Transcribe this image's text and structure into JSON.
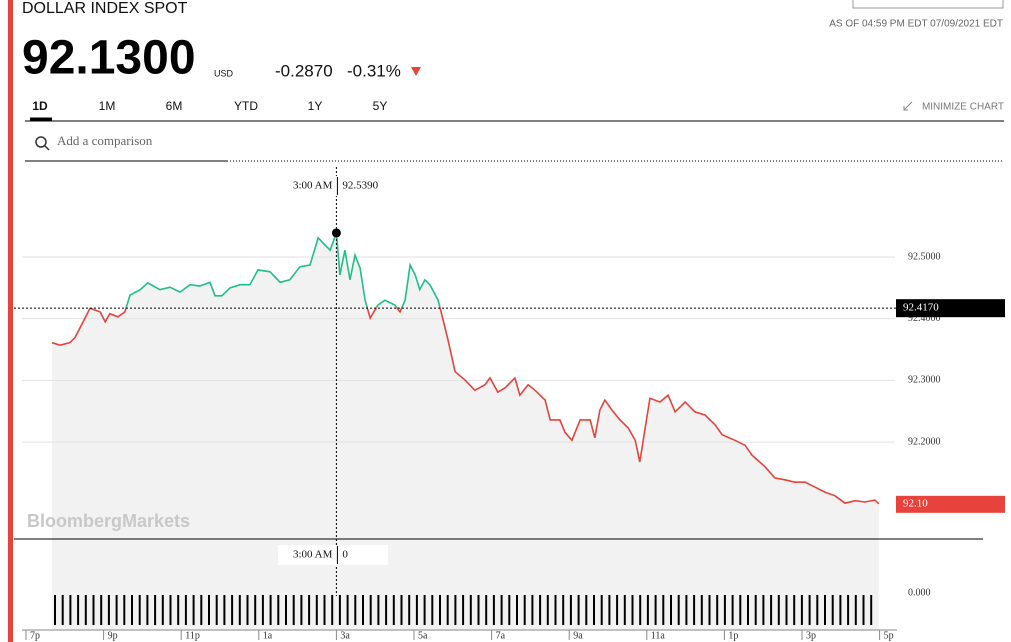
{
  "header": {
    "title": "DOLLAR INDEX SPOT",
    "as_of": "AS OF 04:59 PM EDT 07/09/2021 EDT",
    "price": "92.1300",
    "currency": "USD",
    "change": "-0.2870",
    "change_pct": "-0.31%"
  },
  "tabs": [
    "1D",
    "1M",
    "6M",
    "YTD",
    "1Y",
    "5Y"
  ],
  "minimize": "MINIMIZE CHART",
  "search_placeholder": "Add a comparison",
  "chart_data": {
    "type": "line",
    "watermark": "BloombergMarkets",
    "x": [
      0.67,
      0.88,
      1.13,
      1.26,
      1.52,
      1.65,
      1.91,
      2.04,
      2.16,
      2.37,
      2.55,
      2.68,
      2.94,
      3.14,
      3.45,
      3.71,
      3.97,
      4.23,
      4.48,
      4.74,
      4.87,
      5.05,
      5.26,
      5.52,
      5.77,
      5.98,
      6.29,
      6.55,
      6.8,
      7.06,
      7.32,
      7.53,
      7.71,
      7.84,
      8.0,
      8.09,
      8.22,
      8.35,
      8.48,
      8.61,
      8.74,
      8.87,
      9.07,
      9.25,
      9.51,
      9.64,
      9.77,
      9.9,
      10.03,
      10.15,
      10.28,
      10.41,
      10.62,
      10.72,
      10.88,
      11.06,
      11.31,
      11.57,
      11.83,
      11.96,
      12.16,
      12.35,
      12.6,
      12.73,
      12.94,
      13.12,
      13.38,
      13.51,
      13.76,
      13.89,
      14.07,
      14.28,
      14.54,
      14.66,
      14.79,
      14.92,
      15.1,
      15.31,
      15.52,
      15.7,
      15.82,
      15.95,
      16.08,
      16.34,
      16.55,
      16.73,
      16.99,
      17.24,
      17.5,
      17.76,
      17.94,
      18.27,
      18.53,
      18.71,
      19.05,
      19.3,
      19.56,
      19.82,
      20.08,
      20.34,
      20.59,
      20.85,
      21.11,
      21.37,
      21.62,
      21.88,
      21.98
    ],
    "series": [
      {
        "color_up": "#1fbf86",
        "color_down": "#e8423c",
        "values": [
          92.361,
          92.357,
          92.361,
          92.369,
          92.401,
          92.417,
          92.411,
          92.395,
          92.408,
          92.403,
          92.411,
          92.438,
          92.447,
          92.458,
          92.447,
          92.451,
          92.443,
          92.455,
          92.453,
          92.459,
          92.437,
          92.437,
          92.45,
          92.455,
          92.455,
          92.479,
          92.476,
          92.459,
          92.463,
          92.484,
          92.487,
          92.531,
          92.519,
          92.511,
          92.539,
          92.471,
          92.511,
          92.463,
          92.503,
          92.482,
          92.43,
          92.401,
          92.422,
          92.43,
          92.422,
          92.411,
          92.43,
          92.487,
          92.471,
          92.447,
          92.463,
          92.455,
          92.43,
          92.406,
          92.365,
          92.314,
          92.301,
          92.284,
          92.293,
          92.304,
          92.281,
          92.288,
          92.304,
          92.276,
          92.293,
          92.284,
          92.268,
          92.236,
          92.236,
          92.216,
          92.203,
          92.236,
          92.236,
          92.207,
          92.252,
          92.268,
          92.252,
          92.236,
          92.223,
          92.203,
          92.168,
          92.22,
          92.271,
          92.265,
          92.276,
          92.249,
          92.265,
          92.249,
          92.244,
          92.228,
          92.212,
          92.203,
          92.195,
          92.179,
          92.16,
          92.142,
          92.139,
          92.135,
          92.135,
          92.127,
          92.119,
          92.113,
          92.101,
          92.105,
          92.103,
          92.106,
          92.1
        ],
        "value_labels": {
          "106": "92.10"
        }
      }
    ],
    "xlim": [
      0,
      22
    ],
    "ylim": [
      92.043,
      92.649
    ],
    "xticks": [
      {
        "value": 0,
        "label": "7p"
      },
      {
        "value": 2,
        "label": "9p"
      },
      {
        "value": 4,
        "label": "11p"
      },
      {
        "value": 6,
        "label": "1a"
      },
      {
        "value": 8,
        "label": "3a"
      },
      {
        "value": 10,
        "label": "5a"
      },
      {
        "value": 12,
        "label": "7a"
      },
      {
        "value": 14,
        "label": "9a"
      },
      {
        "value": 16,
        "label": "11a"
      },
      {
        "value": 18,
        "label": "1p"
      },
      {
        "value": 20,
        "label": "3p"
      },
      {
        "value": 22,
        "label": "5p"
      }
    ],
    "yticks": [
      {
        "value": 92.5,
        "label": "92.5000"
      },
      {
        "value": 92.4,
        "label": "92.4000"
      },
      {
        "value": 92.3,
        "label": "92.3000"
      },
      {
        "value": 92.2,
        "label": "92.2000"
      }
    ],
    "grid": true,
    "previous_close": {
      "value": 92.417,
      "label": "92.4170"
    },
    "crosshair": {
      "x": 8,
      "time": "3:00 AM",
      "value": 92.539,
      "value_label": "92.5390",
      "volume": 0
    },
    "volume_tick": {
      "value": 0,
      "label": "0.000"
    }
  }
}
